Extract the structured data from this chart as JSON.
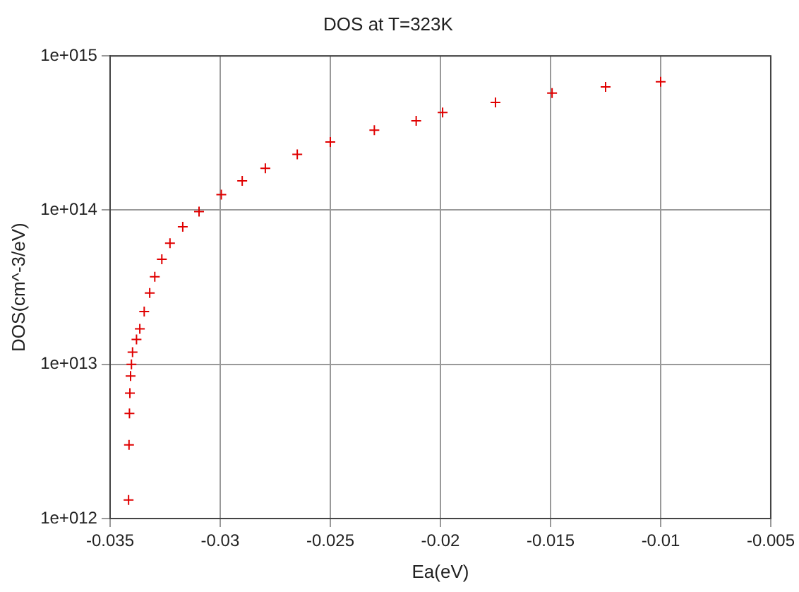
{
  "chart_data": {
    "type": "scatter",
    "title": "DOS at T=323K",
    "xlabel": "Ea(eV)",
    "ylabel": "DOS(cm^-3/eV)",
    "x": [
      -0.03416,
      -0.03414,
      -0.03412,
      -0.0341,
      -0.03407,
      -0.03403,
      -0.03398,
      -0.0338,
      -0.03365,
      -0.03345,
      -0.0332,
      -0.03297,
      -0.03265,
      -0.03228,
      -0.0317,
      -0.03096,
      -0.02995,
      -0.029,
      -0.02795,
      -0.0265,
      -0.025,
      -0.023,
      -0.0211,
      -0.0199,
      -0.0175,
      -0.01493,
      -0.0125,
      -0.01
    ],
    "series": [
      {
        "color": "#e00000",
        "values": [
          1320000000000.0,
          3000000000000.0,
          4800000000000.0,
          6500000000000.0,
          8400000000000.0,
          10000000000000.0,
          12000000000000.0,
          14500000000000.0,
          17000000000000.0,
          22000000000000.0,
          29000000000000.0,
          37000000000000.0,
          48000000000000.0,
          61000000000000.0,
          78000000000000.0,
          98000000000000.0,
          126000000000000.0,
          155000000000000.0,
          187000000000000.0,
          230000000000000.0,
          277000000000000.0,
          330000000000000.0,
          380000000000000.0,
          430000000000000.0,
          500000000000000.0,
          575000000000000.0,
          630000000000000.0,
          680000000000000.0
        ]
      }
    ],
    "xlim": [
      -0.035,
      -0.005
    ],
    "xticks": [
      -0.035,
      -0.03,
      -0.025,
      -0.02,
      -0.015,
      -0.01,
      -0.005
    ],
    "log": "y",
    "ylim": [
      1000000000000.0,
      1000000000000000.0
    ],
    "yticks": [
      {
        "value": 1000000000000.0,
        "label": "1e+012"
      },
      {
        "value": 10000000000000.0,
        "label": "1e+013"
      },
      {
        "value": 100000000000000.0,
        "label": "1e+014"
      },
      {
        "value": 1000000000000000.0,
        "label": "1e+015"
      }
    ],
    "grid": true,
    "marker": "cross",
    "legend": false
  }
}
